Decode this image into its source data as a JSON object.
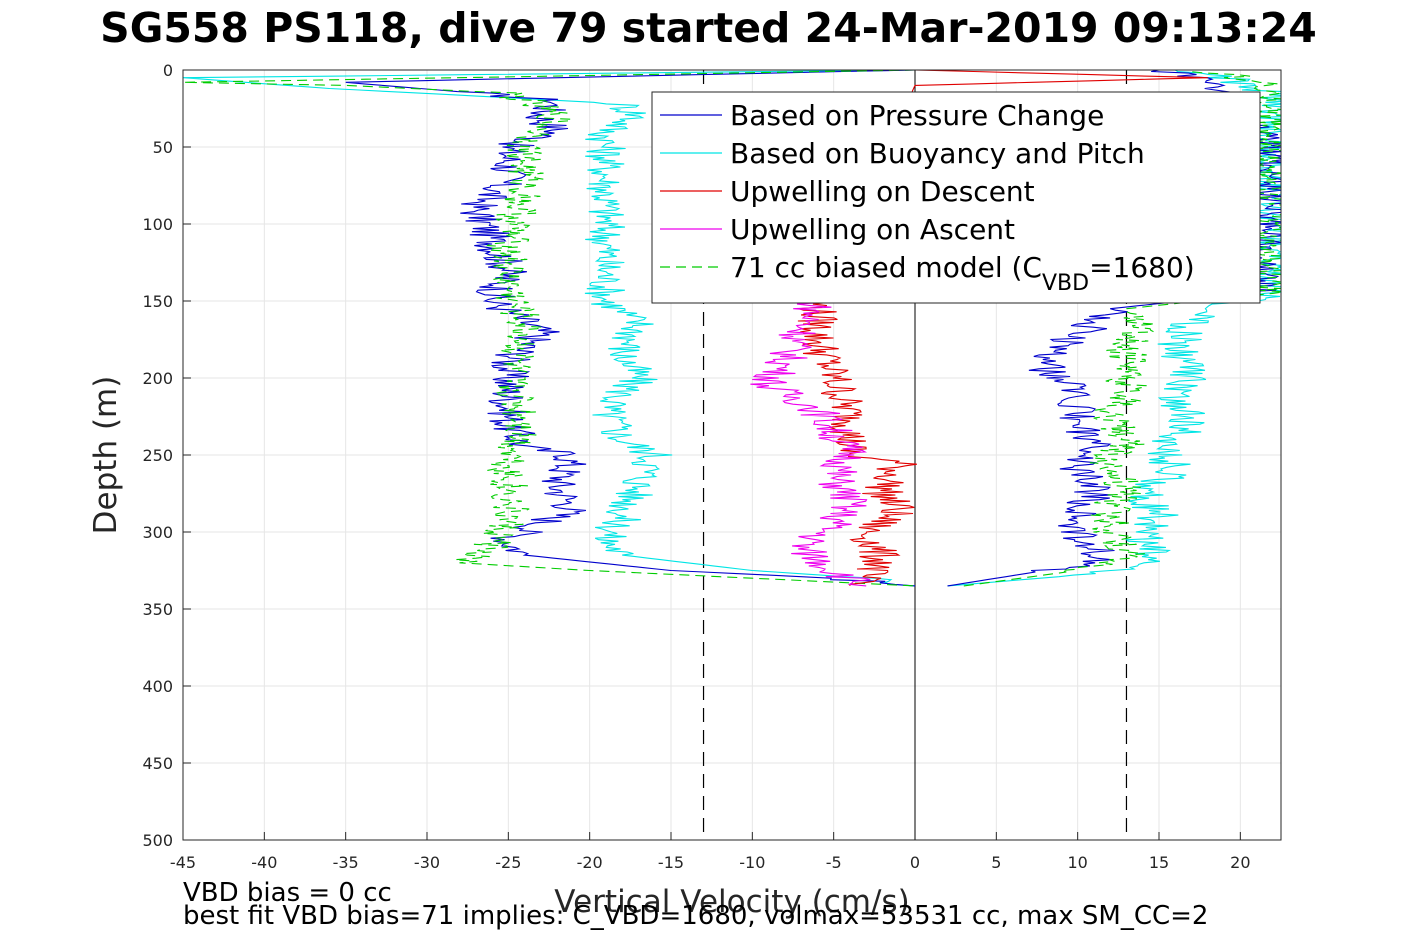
{
  "chart_data": {
    "type": "line",
    "title": "SG558 PS118, dive 79 started 24-Mar-2019 09:13:24",
    "xlabel": "Vertical Velocity (cm/s)",
    "ylabel": "Depth (m)",
    "xlim": [
      -45,
      22.5
    ],
    "ylim": [
      500,
      0
    ],
    "y_reversed": true,
    "grid": true,
    "x_ticks": [
      "-45",
      "-40",
      "-35",
      "-30",
      "-25",
      "-20",
      "-15",
      "-10",
      "-5",
      "0",
      "5",
      "10",
      "15",
      "20"
    ],
    "y_ticks": [
      "0",
      "50",
      "100",
      "150",
      "200",
      "250",
      "300",
      "350",
      "400",
      "450",
      "500"
    ],
    "legend_position": "top-right",
    "reference_lines": {
      "vertical_dashed": [
        -13,
        13
      ],
      "vertical_solid": [
        0
      ]
    },
    "legend": [
      {
        "label": "Based on Pressure Change",
        "color": "#0000cc",
        "style": "solid"
      },
      {
        "label": "Based on Buoyancy and Pitch",
        "color": "#00e5e5",
        "style": "solid"
      },
      {
        "label": "Upwelling on Descent",
        "color": "#e00000",
        "style": "solid"
      },
      {
        "label": "Upwelling on Ascent",
        "color": "#ee00ee",
        "style": "solid"
      },
      {
        "label": "71 cc biased model (C",
        "sub": "VBD",
        "suffix": "=1680)",
        "color": "#00cc00",
        "style": "dashed"
      }
    ],
    "series": [
      {
        "name": "Based on Pressure Change",
        "color": "#0000cc",
        "descent": [
          [
            0,
            0
          ],
          [
            -35,
            8
          ],
          [
            -27,
            15
          ],
          [
            -22,
            20
          ],
          [
            -23,
            30
          ],
          [
            -22,
            40
          ],
          [
            -25,
            50
          ],
          [
            -25,
            70
          ],
          [
            -27,
            90
          ],
          [
            -26,
            110
          ],
          [
            -25,
            130
          ],
          [
            -26,
            150
          ],
          [
            -23,
            170
          ],
          [
            -25,
            190
          ],
          [
            -25,
            210
          ],
          [
            -25,
            230
          ],
          [
            -24,
            245
          ],
          [
            -21,
            250
          ],
          [
            -22,
            270
          ],
          [
            -21,
            285
          ],
          [
            -23,
            295
          ],
          [
            -25,
            305
          ],
          [
            -24,
            315
          ],
          [
            -15,
            325
          ],
          [
            -5,
            330
          ],
          [
            0,
            335
          ]
        ],
        "ascent": [
          [
            2,
            335
          ],
          [
            8,
            325
          ],
          [
            12,
            318
          ],
          [
            10,
            305
          ],
          [
            10,
            290
          ],
          [
            11,
            275
          ],
          [
            10,
            260
          ],
          [
            11,
            245
          ],
          [
            10,
            230
          ],
          [
            10,
            210
          ],
          [
            8,
            195
          ],
          [
            9,
            180
          ],
          [
            11,
            165
          ],
          [
            12,
            155
          ],
          [
            21,
            145
          ],
          [
            21,
            120
          ],
          [
            22,
            100
          ],
          [
            22,
            70
          ],
          [
            21,
            40
          ],
          [
            19,
            15
          ],
          [
            17,
            5
          ],
          [
            15,
            0
          ]
        ]
      },
      {
        "name": "Based on Buoyancy and Pitch",
        "color": "#00e5e5",
        "descent": [
          [
            0,
            0
          ],
          [
            -45,
            5
          ],
          [
            -36,
            12
          ],
          [
            -25,
            18
          ],
          [
            -18,
            22
          ],
          [
            -17,
            30
          ],
          [
            -19,
            40
          ],
          [
            -19,
            60
          ],
          [
            -19,
            90
          ],
          [
            -19,
            120
          ],
          [
            -19,
            150
          ],
          [
            -17,
            165
          ],
          [
            -18,
            185
          ],
          [
            -17,
            200
          ],
          [
            -19,
            220
          ],
          [
            -18,
            240
          ],
          [
            -16,
            250
          ],
          [
            -17,
            270
          ],
          [
            -18,
            290
          ],
          [
            -19,
            305
          ],
          [
            -18,
            315
          ],
          [
            -10,
            325
          ],
          [
            -3,
            330
          ],
          [
            0,
            335
          ]
        ],
        "ascent": [
          [
            2,
            335
          ],
          [
            10,
            328
          ],
          [
            15,
            320
          ],
          [
            14,
            305
          ],
          [
            15,
            290
          ],
          [
            14,
            275
          ],
          [
            16,
            260
          ],
          [
            15,
            245
          ],
          [
            17,
            230
          ],
          [
            16,
            215
          ],
          [
            17,
            200
          ],
          [
            16,
            180
          ],
          [
            17,
            165
          ],
          [
            18,
            155
          ],
          [
            22,
            145
          ],
          [
            22,
            120
          ],
          [
            22,
            80
          ],
          [
            22,
            40
          ],
          [
            22,
            15
          ],
          [
            19,
            5
          ],
          [
            16,
            0
          ]
        ]
      },
      {
        "name": "Upwelling on Descent",
        "color": "#e00000",
        "points": [
          [
            0,
            0
          ],
          [
            18,
            5
          ],
          [
            0,
            10
          ],
          [
            -6,
            150
          ],
          [
            -6,
            175
          ],
          [
            -5,
            200
          ],
          [
            -4,
            225
          ],
          [
            -4,
            250
          ],
          [
            -1,
            255
          ],
          [
            -2,
            275
          ],
          [
            -1,
            285
          ],
          [
            -3,
            300
          ],
          [
            -2,
            320
          ],
          [
            -4,
            335
          ]
        ]
      },
      {
        "name": "Upwelling on Ascent",
        "color": "#ee00ee",
        "points": [
          [
            -6,
            150
          ],
          [
            -7,
            170
          ],
          [
            -8,
            190
          ],
          [
            -9,
            205
          ],
          [
            -6,
            220
          ],
          [
            -5,
            235
          ],
          [
            -4,
            250
          ],
          [
            -5,
            265
          ],
          [
            -4,
            280
          ],
          [
            -5,
            295
          ],
          [
            -7,
            310
          ],
          [
            -5,
            325
          ],
          [
            -3,
            335
          ]
        ]
      },
      {
        "name": "71 cc biased model (C_VBD=1680)",
        "color": "#00cc00",
        "descent": [
          [
            0,
            0
          ],
          [
            -45,
            8
          ],
          [
            -35,
            10
          ],
          [
            -25,
            15
          ],
          [
            -22,
            30
          ],
          [
            -24,
            50
          ],
          [
            -24,
            80
          ],
          [
            -25,
            110
          ],
          [
            -25,
            140
          ],
          [
            -24,
            170
          ],
          [
            -25,
            200
          ],
          [
            -24,
            230
          ],
          [
            -25,
            260
          ],
          [
            -25,
            290
          ],
          [
            -26,
            310
          ],
          [
            -28,
            320
          ],
          [
            -20,
            325
          ],
          [
            -10,
            330
          ],
          [
            0,
            335
          ]
        ],
        "ascent": [
          [
            3,
            335
          ],
          [
            10,
            325
          ],
          [
            13,
            315
          ],
          [
            12,
            300
          ],
          [
            12,
            285
          ],
          [
            13,
            270
          ],
          [
            12,
            255
          ],
          [
            13,
            240
          ],
          [
            12,
            225
          ],
          [
            13,
            210
          ],
          [
            13,
            195
          ],
          [
            13,
            180
          ],
          [
            14,
            165
          ],
          [
            13,
            155
          ],
          [
            22,
            145
          ],
          [
            22,
            100
          ],
          [
            22,
            50
          ],
          [
            22,
            10
          ],
          [
            20,
            5
          ],
          [
            17,
            0
          ]
        ]
      }
    ]
  },
  "footer": {
    "line1": "VBD bias = 0 cc",
    "line2": "best fit VBD bias=71 implies: C_VBD=1680, volmax=53531 cc, max SM_CC=2"
  },
  "colors": {
    "pressure_change": "#0000cc",
    "buoyancy_pitch": "#00e5e5",
    "upwelling_descent": "#e00000",
    "upwelling_ascent": "#ee00ee",
    "biased_model": "#00cc00",
    "grid": "#e6e6e6",
    "axis": "#262626"
  }
}
